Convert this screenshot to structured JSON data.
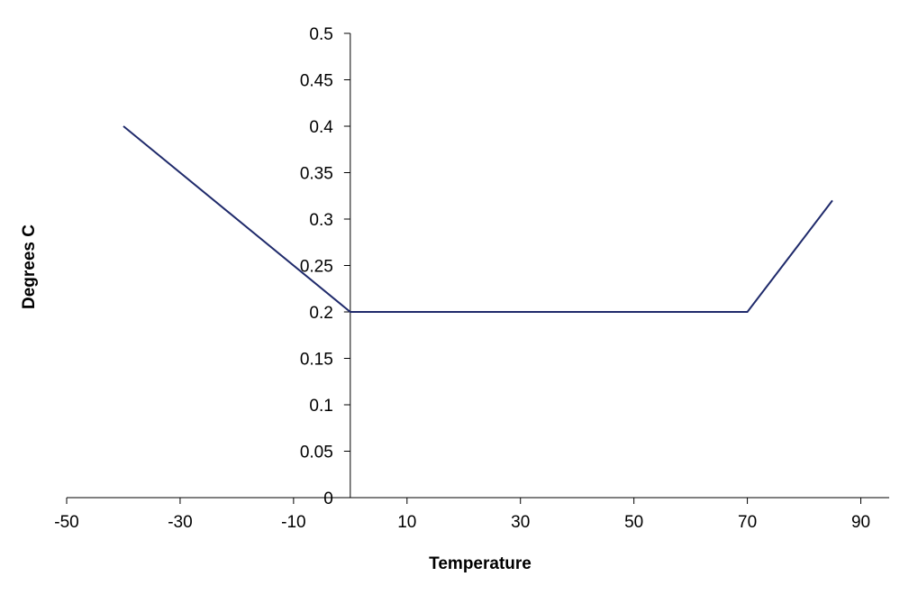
{
  "chart_data": {
    "type": "line",
    "title": "",
    "xlabel": "Temperature",
    "ylabel": "Degrees C",
    "xlim": [
      -50,
      95
    ],
    "ylim": [
      0,
      0.5
    ],
    "xticks": [
      -50,
      -30,
      -10,
      10,
      30,
      50,
      70,
      90
    ],
    "xtick_labels": [
      "-50",
      "-30",
      "-10",
      "10",
      "30",
      "50",
      "70",
      "90"
    ],
    "yticks": [
      0,
      0.05,
      0.1,
      0.15,
      0.2,
      0.25,
      0.3,
      0.35,
      0.4,
      0.45,
      0.5
    ],
    "ytick_labels": [
      "0",
      "0.05",
      "0.1",
      "0.15",
      "0.2",
      "0.25",
      "0.3",
      "0.35",
      "0.4",
      "0.45",
      "0.5"
    ],
    "grid": false,
    "legend": "none",
    "series": [
      {
        "color": "#1f2a6b",
        "x": [
          -40,
          0,
          70,
          85
        ],
        "y": [
          0.4,
          0.2,
          0.2,
          0.32
        ]
      }
    ]
  }
}
